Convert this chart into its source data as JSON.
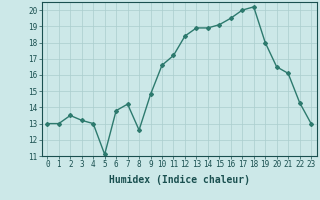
{
  "x": [
    0,
    1,
    2,
    3,
    4,
    5,
    6,
    7,
    8,
    9,
    10,
    11,
    12,
    13,
    14,
    15,
    16,
    17,
    18,
    19,
    20,
    21,
    22,
    23
  ],
  "y": [
    13.0,
    13.0,
    13.5,
    13.2,
    13.0,
    11.1,
    13.8,
    14.2,
    12.6,
    14.8,
    16.6,
    17.2,
    18.4,
    18.9,
    18.9,
    19.1,
    19.5,
    20.0,
    20.2,
    18.0,
    16.5,
    16.1,
    14.3,
    13.0
  ],
  "line_color": "#2d7a6e",
  "marker": "D",
  "marker_size": 2.0,
  "bg_color": "#cce8e8",
  "grid_color": "#aacece",
  "xlabel": "Humidex (Indice chaleur)",
  "ylim": [
    11,
    20.5
  ],
  "xlim": [
    -0.5,
    23.5
  ],
  "yticks": [
    11,
    12,
    13,
    14,
    15,
    16,
    17,
    18,
    19,
    20
  ],
  "xticks": [
    0,
    1,
    2,
    3,
    4,
    5,
    6,
    7,
    8,
    9,
    10,
    11,
    12,
    13,
    14,
    15,
    16,
    17,
    18,
    19,
    20,
    21,
    22,
    23
  ],
  "tick_fontsize": 5.5,
  "xlabel_fontsize": 7.0,
  "line_width": 1.0
}
